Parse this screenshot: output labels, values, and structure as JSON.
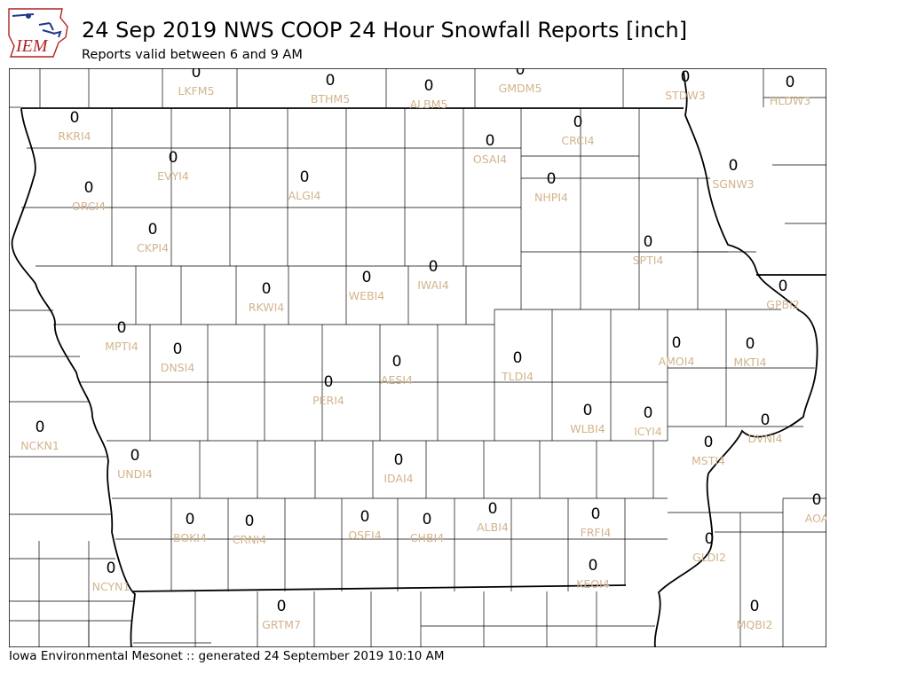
{
  "header": {
    "logo_text": "IEM",
    "title": "24 Sep 2019 NWS COOP 24 Hour Snowfall Reports [inch]",
    "subtitle": "Reports valid between 6 and 9 AM"
  },
  "footer": {
    "text": "Iowa Environmental Mesonet :: generated 24 September 2019 10:10 AM"
  },
  "colors": {
    "value": "#000000",
    "station_id": "#d2b48c",
    "county_line": "#000000"
  },
  "stations": [
    {
      "id": "LKFM5",
      "value": "0"
    },
    {
      "id": "BTHM5",
      "value": "0"
    },
    {
      "id": "ALBM5",
      "value": "0"
    },
    {
      "id": "GMDM5",
      "value": "0"
    },
    {
      "id": "STDW3",
      "value": "0"
    },
    {
      "id": "HLDW3",
      "value": "0"
    },
    {
      "id": "RKRI4",
      "value": "0"
    },
    {
      "id": "CRCI4",
      "value": "0"
    },
    {
      "id": "OSAI4",
      "value": "0"
    },
    {
      "id": "EVYI4",
      "value": "0"
    },
    {
      "id": "ALGI4",
      "value": "0"
    },
    {
      "id": "NHPI4",
      "value": "0"
    },
    {
      "id": "SGNW3",
      "value": "0"
    },
    {
      "id": "ORCI4",
      "value": "0"
    },
    {
      "id": "CKPI4",
      "value": "0"
    },
    {
      "id": "SPTI4",
      "value": "0"
    },
    {
      "id": "RKWI4",
      "value": "0"
    },
    {
      "id": "WEBI4",
      "value": "0"
    },
    {
      "id": "IWAI4",
      "value": "0"
    },
    {
      "id": "GPBI2",
      "value": "0"
    },
    {
      "id": "MPTI4",
      "value": "0"
    },
    {
      "id": "DNSI4",
      "value": "0"
    },
    {
      "id": "AMOI4",
      "value": "0"
    },
    {
      "id": "MKTI4",
      "value": "0"
    },
    {
      "id": "AESI4",
      "value": "0"
    },
    {
      "id": "TLDI4",
      "value": "0"
    },
    {
      "id": "PERI4",
      "value": "0"
    },
    {
      "id": "WLBI4",
      "value": "0"
    },
    {
      "id": "ICYI4",
      "value": "0"
    },
    {
      "id": "DVNI4",
      "value": "0"
    },
    {
      "id": "NCKN1",
      "value": "0"
    },
    {
      "id": "MSTI4",
      "value": "0"
    },
    {
      "id": "UNDI4",
      "value": "0"
    },
    {
      "id": "IDAI4",
      "value": "0"
    },
    {
      "id": "AOA",
      "value": "0"
    },
    {
      "id": "BOKI4",
      "value": "0"
    },
    {
      "id": "CRNI4",
      "value": "0"
    },
    {
      "id": "OSEI4",
      "value": "0"
    },
    {
      "id": "CHBI4",
      "value": "0"
    },
    {
      "id": "ALBI4",
      "value": "0"
    },
    {
      "id": "FRFI4",
      "value": "0"
    },
    {
      "id": "GLDI2",
      "value": "0"
    },
    {
      "id": "NCYN1",
      "value": "0"
    },
    {
      "id": "KEOI4",
      "value": "0"
    },
    {
      "id": "GRTM7",
      "value": "0"
    },
    {
      "id": "MQBI2",
      "value": "0"
    }
  ]
}
